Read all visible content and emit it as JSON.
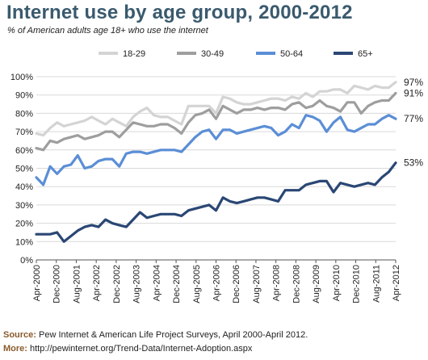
{
  "chart_data": {
    "type": "line",
    "title": "Internet use by age group, 2000-2012",
    "subtitle": "% of American adults age 18+ who use the internet",
    "xlabel": "",
    "ylabel": "",
    "ylim": [
      0,
      100
    ],
    "y_ticks": [
      "0%",
      "10%",
      "20%",
      "30%",
      "40%",
      "50%",
      "60%",
      "70%",
      "80%",
      "90%",
      "100%"
    ],
    "x_tick_labels": [
      "Apr-2000",
      "Dec-2000",
      "Aug-2001",
      "Apr-2002",
      "Dec-2002",
      "Aug-2003",
      "Apr-2004",
      "Dec-2004",
      "Aug-2005",
      "Apr-2006",
      "Dec-2006",
      "Aug-2007",
      "Apr-2008",
      "Dec-2008",
      "Aug-2009",
      "Apr-2010",
      "Dec-2010",
      "Aug-2011",
      "Apr-2012"
    ],
    "grid": true,
    "legend_position": "top",
    "x": [
      0,
      1,
      2,
      3,
      4,
      5,
      6,
      7,
      8,
      9,
      10,
      11,
      12,
      13,
      14,
      15,
      16,
      17,
      18,
      19,
      20,
      21,
      22,
      23,
      24,
      25,
      26,
      27,
      28,
      29,
      30,
      31,
      32,
      33,
      34,
      35,
      36,
      37,
      38,
      39,
      40,
      41,
      42,
      43,
      44,
      45,
      46,
      47,
      48,
      49,
      50,
      51,
      52
    ],
    "series": [
      {
        "name": "18-29",
        "color": "#d4d4d4",
        "end_label": "97%",
        "values": [
          69,
          68,
          72,
          75,
          73,
          74,
          75,
          76,
          78,
          76,
          74,
          77,
          75,
          73,
          78,
          81,
          83,
          79,
          78,
          78,
          76,
          74,
          84,
          84,
          84,
          84,
          80,
          89,
          88,
          86,
          85,
          85,
          86,
          87,
          88,
          88,
          87,
          89,
          88,
          91,
          89,
          92,
          92,
          93,
          93,
          91,
          95,
          94,
          93,
          95,
          94,
          94,
          97
        ]
      },
      {
        "name": "30-49",
        "color": "#9e9e9e",
        "end_label": "91%",
        "values": [
          61,
          60,
          65,
          64,
          66,
          67,
          68,
          66,
          67,
          68,
          70,
          70,
          67,
          71,
          75,
          74,
          73,
          73,
          74,
          74,
          72,
          69,
          75,
          79,
          80,
          82,
          77,
          84,
          82,
          80,
          82,
          82,
          83,
          82,
          83,
          83,
          82,
          85,
          86,
          83,
          84,
          87,
          84,
          83,
          81,
          86,
          86,
          80,
          84,
          86,
          87,
          87,
          91
        ]
      },
      {
        "name": "50-64",
        "color": "#5b8ed6",
        "end_label": "77%",
        "values": [
          45,
          41,
          51,
          47,
          51,
          52,
          57,
          50,
          51,
          54,
          55,
          55,
          51,
          58,
          59,
          59,
          58,
          59,
          60,
          60,
          60,
          59,
          63,
          67,
          70,
          71,
          66,
          71,
          71,
          69,
          70,
          71,
          72,
          73,
          72,
          68,
          70,
          74,
          72,
          79,
          78,
          76,
          70,
          75,
          78,
          71,
          70,
          72,
          74,
          74,
          77,
          79,
          77
        ]
      },
      {
        "name": "65+",
        "color": "#2a4774",
        "end_label": "53%",
        "values": [
          14,
          14,
          14,
          15,
          10,
          13,
          16,
          18,
          19,
          18,
          22,
          20,
          19,
          18,
          22,
          26,
          23,
          24,
          25,
          25,
          25,
          24,
          27,
          28,
          29,
          30,
          27,
          34,
          32,
          31,
          32,
          33,
          34,
          34,
          33,
          32,
          38,
          38,
          38,
          41,
          42,
          43,
          43,
          37,
          42,
          41,
          40,
          41,
          42,
          41,
          45,
          48,
          53
        ]
      }
    ]
  },
  "footer": {
    "source_label": "Source:",
    "source_text": " Pew Internet & American Life Project Surveys, April 2000-April 2012.",
    "more_label": "More:",
    "more_text": " http://pewinternet.org/Trend-Data/Internet-Adoption.aspx"
  }
}
